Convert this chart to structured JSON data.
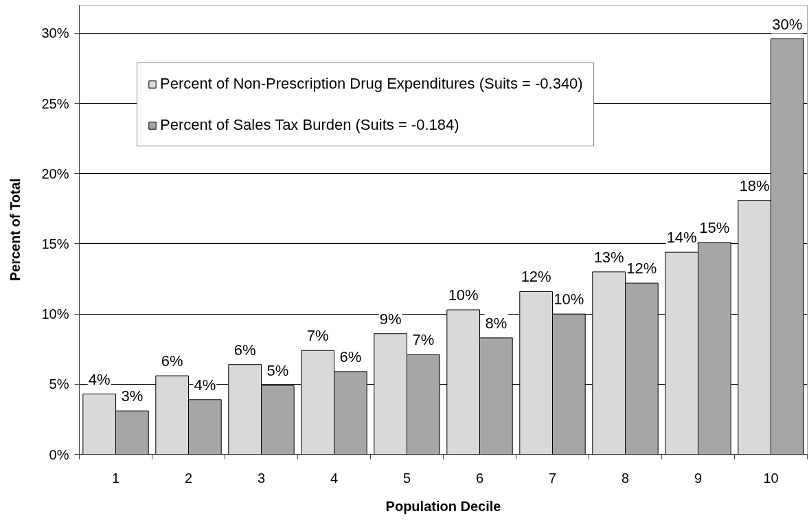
{
  "chart_data": {
    "type": "bar",
    "xlabel": "Population Decile",
    "ylabel": "Percent of Total",
    "categories": [
      "1",
      "2",
      "3",
      "4",
      "5",
      "6",
      "7",
      "8",
      "9",
      "10"
    ],
    "series": [
      {
        "name": "Percent of Non-Prescription Drug Expenditures (Suits = -0.340)",
        "color": "#d9d9d9",
        "values": [
          4.3,
          5.6,
          6.4,
          7.4,
          8.6,
          10.3,
          11.6,
          13.0,
          14.4,
          18.1
        ],
        "value_labels": [
          "4%",
          "6%",
          "6%",
          "7%",
          "9%",
          "10%",
          "12%",
          "13%",
          "14%",
          "18%"
        ]
      },
      {
        "name": "Percent of Sales Tax Burden (Suits = -0.184)",
        "color": "#a6a6a6",
        "values": [
          3.1,
          3.9,
          4.9,
          5.9,
          7.1,
          8.3,
          10.0,
          12.2,
          15.1,
          29.6
        ],
        "value_labels": [
          "3%",
          "4%",
          "5%",
          "6%",
          "7%",
          "8%",
          "10%",
          "12%",
          "15%",
          "30%"
        ]
      }
    ],
    "ylim": [
      0,
      32
    ],
    "yticks": [
      {
        "value": 0,
        "label": "0%"
      },
      {
        "value": 5,
        "label": "5%"
      },
      {
        "value": 10,
        "label": "10%"
      },
      {
        "value": 15,
        "label": "15%"
      },
      {
        "value": 20,
        "label": "20%"
      },
      {
        "value": 25,
        "label": "25%"
      },
      {
        "value": 30,
        "label": "30%"
      }
    ],
    "grid": "y",
    "legend": "top left"
  }
}
